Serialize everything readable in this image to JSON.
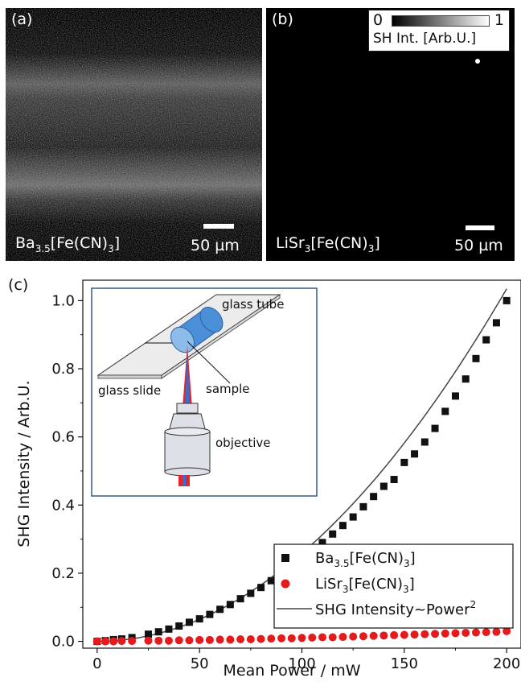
{
  "panel_a": {
    "letter": "(a)",
    "sample_base": "Ba",
    "sample_sub": "3.5",
    "sample_rest": "[Fe(CN)",
    "sample_sub2": "3",
    "sample_end": "]",
    "scale_label": "50 µm"
  },
  "panel_b": {
    "letter": "(b)",
    "sample_base": "LiSr",
    "sample_sub": "3",
    "sample_rest": "[Fe(CN)",
    "sample_sub2": "3",
    "sample_end": "]",
    "scale_label": "50 µm",
    "colorbar": {
      "min": "0",
      "max": "1",
      "label": "SH Int. [Arb.U.]"
    }
  },
  "panel_c": {
    "letter": "(c)",
    "inset": {
      "glass_tube": "glass tube",
      "glass_slide": "glass slide",
      "sample": "sample",
      "objective": "objective"
    }
  },
  "colors": {
    "ba_series": "#111111",
    "lisr_series": "#e41a1c",
    "fit_line": "#444444",
    "tube": "#4a8fd8",
    "beam_red": "#e8232a",
    "beam_blue": "#2f6fd6"
  },
  "chart_data": {
    "type": "scatter",
    "xlabel": "Mean Power / mW",
    "ylabel": "SHG Intensity / Arb.U.",
    "xlim": [
      -7,
      207
    ],
    "ylim": [
      -0.02,
      1.06
    ],
    "x_ticks": [
      "0",
      "50",
      "100",
      "150",
      "200"
    ],
    "y_ticks": [
      "0.0",
      "0.2",
      "0.4",
      "0.6",
      "0.8",
      "1.0"
    ],
    "legend_position": "bottom-right",
    "series": [
      {
        "name": "Ba3.5[Fe(CN)3]",
        "name_base": "Ba",
        "name_sub": "3.5",
        "name_rest": "[Fe(CN)",
        "name_sub2": "3",
        "name_end": "]",
        "marker": "square",
        "x": [
          0,
          4,
          8,
          12,
          17,
          25,
          30,
          35,
          40,
          45,
          50,
          55,
          60,
          65,
          70,
          75,
          80,
          85,
          90,
          95,
          100,
          105,
          110,
          115,
          120,
          125,
          130,
          135,
          140,
          145,
          150,
          155,
          160,
          165,
          170,
          175,
          180,
          185,
          190,
          195,
          200
        ],
        "y": [
          0.0,
          0.002,
          0.005,
          0.007,
          0.011,
          0.021,
          0.028,
          0.036,
          0.045,
          0.056,
          0.066,
          0.079,
          0.094,
          0.108,
          0.125,
          0.141,
          0.158,
          0.178,
          0.199,
          0.221,
          0.244,
          0.27,
          0.29,
          0.315,
          0.34,
          0.365,
          0.395,
          0.425,
          0.455,
          0.475,
          0.525,
          0.55,
          0.585,
          0.625,
          0.675,
          0.72,
          0.77,
          0.83,
          0.885,
          0.935,
          1.0
        ]
      },
      {
        "name": "LiSr3[Fe(CN)3]",
        "name_base": "LiSr",
        "name_sub": "3",
        "name_rest": "[Fe(CN)",
        "name_sub2": "3",
        "name_end": "]",
        "marker": "circle",
        "x": [
          0,
          4,
          8,
          12,
          17,
          25,
          30,
          35,
          40,
          45,
          50,
          55,
          60,
          65,
          70,
          75,
          80,
          85,
          90,
          95,
          100,
          105,
          110,
          115,
          120,
          125,
          130,
          135,
          140,
          145,
          150,
          155,
          160,
          165,
          170,
          175,
          180,
          185,
          190,
          195,
          200
        ],
        "y": [
          0.0,
          0.0,
          0.0,
          0.001,
          0.001,
          0.002,
          0.002,
          0.002,
          0.003,
          0.003,
          0.004,
          0.004,
          0.005,
          0.005,
          0.006,
          0.006,
          0.007,
          0.008,
          0.009,
          0.009,
          0.01,
          0.011,
          0.012,
          0.012,
          0.013,
          0.014,
          0.015,
          0.016,
          0.017,
          0.018,
          0.019,
          0.02,
          0.021,
          0.022,
          0.023,
          0.024,
          0.025,
          0.026,
          0.027,
          0.028,
          0.03
        ]
      },
      {
        "name": "SHG Intensity~Power2",
        "name_base": "SHG Intensity~Power",
        "name_sup": "2",
        "marker": "line",
        "fit": "power2",
        "coef": 2.587e-05,
        "x_range": [
          0,
          200
        ]
      }
    ]
  }
}
